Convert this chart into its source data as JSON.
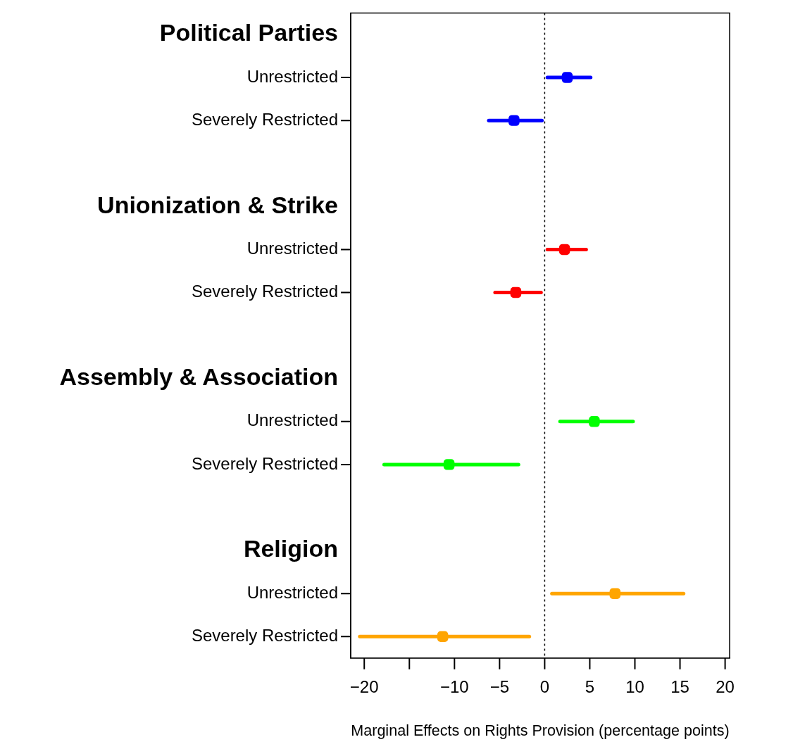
{
  "chart_data": {
    "type": "scatter",
    "orientation": "horizontal",
    "xlabel": "Marginal Effects on Rights Provision (percentage points)",
    "categories": [
      "Political Parties",
      "Unrestricted",
      "Severely Restricted",
      null,
      "Unionization & Strike",
      "Unrestricted",
      "Severely Restricted",
      null,
      "Assembly & Association",
      "Unrestricted",
      "Severely Restricted",
      null,
      "Religion",
      "Unrestricted",
      "Severely Restricted"
    ],
    "series": [
      {
        "color": "#0000ff",
        "values": [
          null,
          2.5,
          -3.4,
          null,
          null,
          null,
          null,
          null,
          null,
          null,
          null,
          null,
          null,
          null,
          null
        ],
        "errors": [
          null,
          [
            0.3,
            5.1
          ],
          [
            -6.2,
            -0.3
          ],
          null,
          null,
          null,
          null,
          null,
          null,
          null,
          null,
          null,
          null,
          null,
          null
        ]
      },
      {
        "color": "#ff0000",
        "values": [
          null,
          null,
          null,
          null,
          null,
          2.2,
          -3.2,
          null,
          null,
          null,
          null,
          null,
          null,
          null,
          null
        ],
        "errors": [
          null,
          null,
          null,
          null,
          null,
          [
            0.3,
            4.6
          ],
          [
            -5.5,
            -0.4
          ],
          null,
          null,
          null,
          null,
          null,
          null,
          null,
          null
        ]
      },
      {
        "color": "#00ff00",
        "values": [
          null,
          null,
          null,
          null,
          null,
          null,
          null,
          null,
          null,
          5.5,
          -10.6,
          null,
          null,
          null,
          null
        ],
        "errors": [
          null,
          null,
          null,
          null,
          null,
          null,
          null,
          null,
          null,
          [
            1.7,
            9.8
          ],
          [
            -17.8,
            -2.9
          ],
          null,
          null,
          null,
          null
        ]
      },
      {
        "color": "#ffa500",
        "values": [
          null,
          null,
          null,
          null,
          null,
          null,
          null,
          null,
          null,
          null,
          null,
          null,
          null,
          7.8,
          -11.3
        ],
        "errors": [
          null,
          null,
          null,
          null,
          null,
          null,
          null,
          null,
          null,
          null,
          null,
          null,
          null,
          [
            0.8,
            15.4
          ],
          [
            -20.5,
            -1.7
          ]
        ]
      }
    ],
    "xlim": [
      -21.5,
      20.5
    ],
    "xticks": [
      -20,
      {
        "value": -15,
        "label": null
      },
      -10,
      -5,
      0,
      5,
      10,
      15,
      20
    ],
    "ref_lines": [
      {
        "axis": "x",
        "value": 0,
        "line_style": "dotted",
        "color": "#000000"
      }
    ],
    "marker": "square",
    "grid": false,
    "legend": false
  }
}
